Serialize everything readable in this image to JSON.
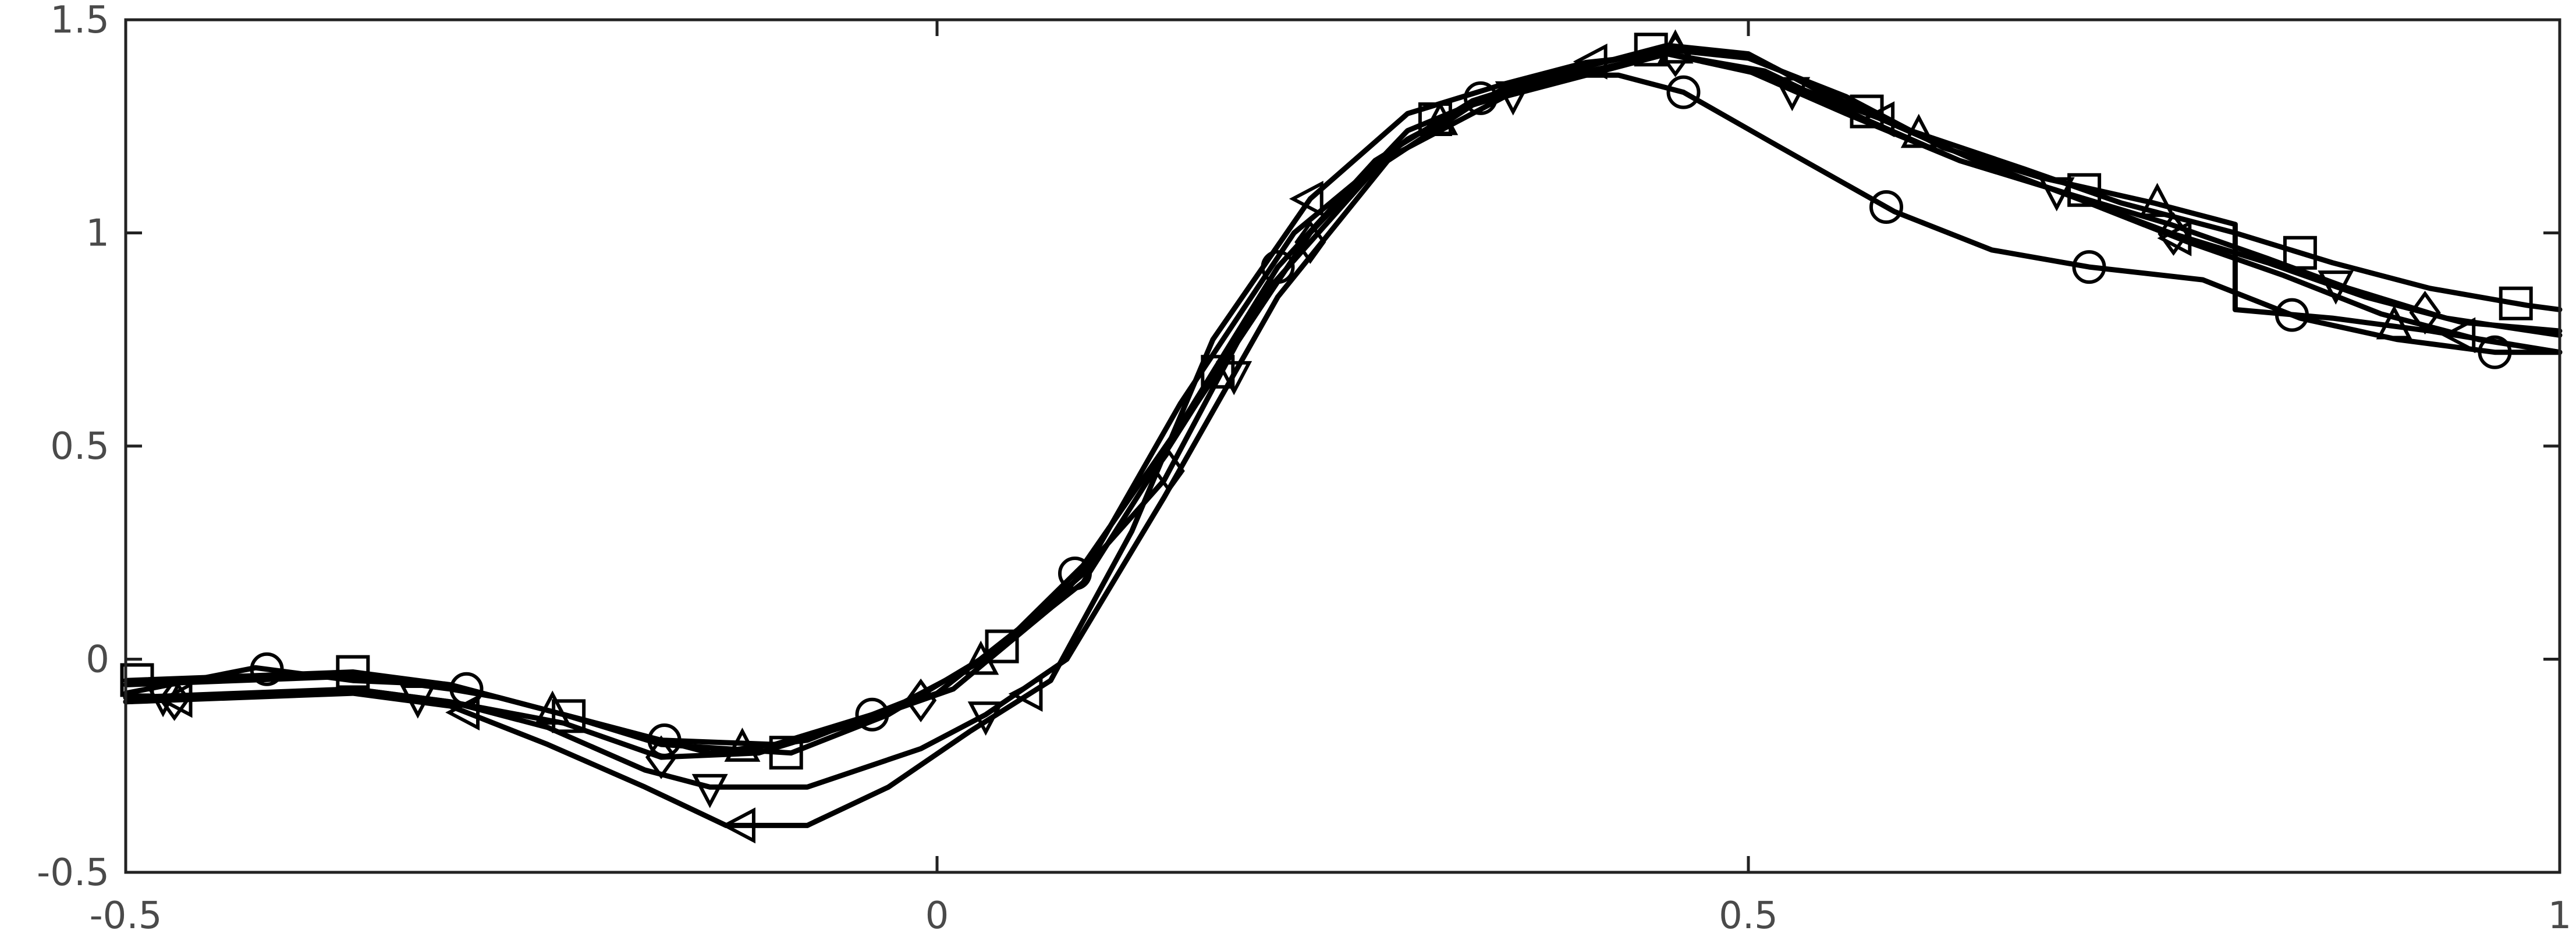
{
  "chart_data": {
    "type": "line",
    "title": "",
    "xlabel": "",
    "ylabel": "",
    "xlim": [
      -0.5,
      1
    ],
    "ylim": [
      -0.5,
      1.5
    ],
    "grid": false,
    "legend": "none",
    "x_ticks": [
      {
        "value": -0.5,
        "label": "-0.5"
      },
      {
        "value": 0,
        "label": "0"
      },
      {
        "value": 0.5,
        "label": "0.5"
      },
      {
        "value": 1,
        "label": "1"
      }
    ],
    "y_ticks": [
      {
        "value": -0.5,
        "label": "-0.5"
      },
      {
        "value": 0,
        "label": "0"
      },
      {
        "value": 0.5,
        "label": "0.5"
      },
      {
        "value": 1,
        "label": "1"
      },
      {
        "value": 1.5,
        "label": "1.5"
      }
    ],
    "series": [
      {
        "marker": "circle",
        "x": [
          -0.5,
          -0.42,
          -0.36,
          -0.3,
          -0.24,
          -0.17,
          -0.1,
          -0.04,
          0.0,
          0.05,
          0.09,
          0.15,
          0.21,
          0.27,
          0.33,
          0.38,
          0.42,
          0.46,
          0.52,
          0.59,
          0.65,
          0.71,
          0.78,
          0.84,
          0.9,
          0.96,
          1.0
        ],
        "y": [
          -0.08,
          -0.02,
          -0.05,
          -0.06,
          -0.12,
          -0.19,
          -0.2,
          -0.13,
          -0.08,
          0.07,
          0.22,
          0.55,
          0.92,
          1.17,
          1.31,
          1.37,
          1.37,
          1.33,
          1.2,
          1.05,
          0.96,
          0.92,
          0.89,
          0.8,
          0.75,
          0.72,
          0.72
        ],
        "marker_x": [
          -0.413,
          -0.29,
          -0.168,
          -0.04,
          0.085,
          0.21,
          0.335,
          0.46,
          0.585,
          0.71,
          0.835,
          0.96
        ]
      },
      {
        "marker": "square",
        "x": [
          -0.5,
          -0.36,
          -0.3,
          -0.23,
          -0.17,
          -0.09,
          -0.03,
          0.04,
          0.09,
          0.16,
          0.23,
          0.29,
          0.36,
          0.41,
          0.45,
          0.5,
          0.54,
          0.6,
          0.67,
          0.73,
          0.8,
          0.86,
          0.92,
          0.98,
          1.0
        ],
        "y": [
          -0.05,
          -0.03,
          -0.06,
          -0.13,
          -0.2,
          -0.22,
          -0.13,
          0.03,
          0.18,
          0.6,
          1.0,
          1.24,
          1.35,
          1.4,
          1.44,
          1.42,
          1.34,
          1.24,
          1.15,
          1.07,
          1.0,
          0.93,
          0.87,
          0.83,
          0.82
        ],
        "marker_x": [
          -0.493,
          -0.36,
          -0.227,
          -0.093,
          0.04,
          0.173,
          0.307,
          0.44,
          0.573,
          0.707,
          0.84,
          0.973
        ]
      },
      {
        "marker": "triangle-up",
        "x": [
          -0.5,
          -0.36,
          -0.3,
          -0.27,
          -0.2,
          -0.14,
          -0.08,
          -0.02,
          0.03,
          0.09,
          0.15,
          0.22,
          0.29,
          0.35,
          0.41,
          0.45,
          0.5,
          0.56,
          0.62,
          0.68,
          0.75,
          0.8,
          0.8,
          0.86,
          0.92,
          1.0
        ],
        "y": [
          -0.06,
          -0.04,
          -0.07,
          -0.09,
          -0.16,
          -0.22,
          -0.19,
          -0.1,
          0.0,
          0.2,
          0.6,
          1.0,
          1.22,
          1.34,
          1.4,
          1.43,
          1.41,
          1.32,
          1.2,
          1.13,
          1.07,
          1.02,
          0.82,
          0.8,
          0.77,
          0.72
        ],
        "marker_x": [
          -0.237,
          -0.12,
          0.027,
          0.31,
          0.455,
          0.605,
          0.752,
          0.898
        ]
      },
      {
        "marker": "triangle-down",
        "x": [
          -0.5,
          -0.36,
          -0.3,
          -0.24,
          -0.18,
          -0.14,
          -0.08,
          -0.01,
          0.03,
          0.08,
          0.14,
          0.21,
          0.28,
          0.35,
          0.41,
          0.45,
          0.5,
          0.56,
          0.63,
          0.69,
          0.76,
          0.82,
          0.87,
          0.93,
          1.0
        ],
        "y": [
          -0.09,
          -0.07,
          -0.1,
          -0.16,
          -0.26,
          -0.3,
          -0.3,
          -0.21,
          -0.13,
          0.0,
          0.38,
          0.85,
          1.18,
          1.32,
          1.38,
          1.42,
          1.38,
          1.28,
          1.17,
          1.1,
          1.02,
          0.94,
          0.87,
          0.8,
          0.76
        ],
        "marker_x": [
          -0.477,
          -0.32,
          -0.14,
          0.03,
          0.183,
          0.355,
          0.527,
          0.69,
          0.862
        ]
      },
      {
        "marker": "diamond",
        "x": [
          -0.5,
          -0.36,
          -0.3,
          -0.23,
          -0.17,
          -0.11,
          -0.05,
          0.01,
          0.07,
          0.14,
          0.2,
          0.27,
          0.33,
          0.39,
          0.45,
          0.51,
          0.57,
          0.63,
          0.69,
          0.76,
          0.82,
          0.88,
          0.94,
          1.0
        ],
        "y": [
          -0.1,
          -0.07,
          -0.1,
          -0.15,
          -0.23,
          -0.22,
          -0.15,
          -0.07,
          0.12,
          0.42,
          0.85,
          1.15,
          1.3,
          1.37,
          1.42,
          1.38,
          1.27,
          1.17,
          1.1,
          1.0,
          0.93,
          0.85,
          0.79,
          0.77
        ],
        "marker_x": [
          -0.47,
          -0.17,
          -0.01,
          0.143,
          0.23,
          0.455,
          0.762,
          0.917
        ]
      },
      {
        "marker": "triangle-left",
        "x": [
          -0.5,
          -0.36,
          -0.3,
          -0.24,
          -0.18,
          -0.13,
          -0.08,
          -0.03,
          0.02,
          0.07,
          0.12,
          0.17,
          0.23,
          0.29,
          0.35,
          0.4,
          0.45,
          0.51,
          0.58,
          0.64,
          0.71,
          0.77,
          0.83,
          0.89,
          0.95,
          1.0
        ],
        "y": [
          -0.1,
          -0.08,
          -0.11,
          -0.2,
          -0.3,
          -0.39,
          -0.39,
          -0.3,
          -0.17,
          -0.05,
          0.3,
          0.75,
          1.08,
          1.28,
          1.35,
          1.4,
          1.42,
          1.37,
          1.27,
          1.17,
          1.07,
          0.98,
          0.9,
          0.81,
          0.75,
          0.72
        ],
        "marker_x": [
          -0.467,
          -0.29,
          -0.12,
          0.057,
          0.23,
          0.405,
          0.582,
          0.765,
          0.94
        ]
      }
    ]
  }
}
